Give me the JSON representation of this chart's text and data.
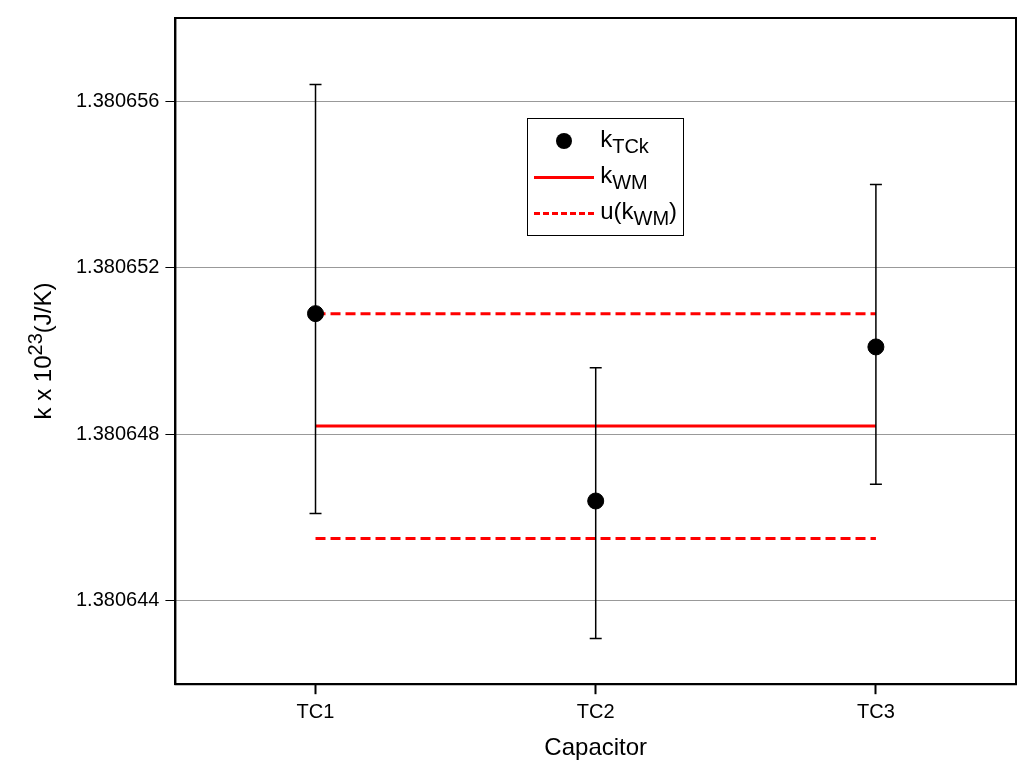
{
  "chart_data": {
    "type": "scatter",
    "xlabel": "Capacitor",
    "ylabel": "k x 10$^{23}$(J/K)",
    "categories": [
      "TC1",
      "TC2",
      "TC3"
    ],
    "series": [
      {
        "name": "k$_{TCk}$",
        "color": "#000000",
        "marker": "circle",
        "values": [
          1.3806509,
          1.3806464,
          1.3806501
        ],
        "errors": [
          [
            1.3806461,
            1.3806564
          ],
          [
            1.3806431,
            1.3806496
          ],
          [
            1.3806468,
            1.380654
          ]
        ]
      },
      {
        "name": "k$_{WM}$",
        "type": "line",
        "color": "#ff0000",
        "marker": "none",
        "line_style": "solid",
        "values": [
          1.3806482,
          1.3806482,
          1.3806482
        ]
      },
      {
        "name": "u(k$_{WM}$)",
        "type": "line",
        "color": "#ff0000",
        "marker": "none",
        "line_style": "dashed",
        "values": [
          1.3806509,
          1.3806509,
          1.3806509
        ]
      },
      {
        "type": "line",
        "color": "#ff0000",
        "marker": "none",
        "line_style": "dashed",
        "values": [
          1.3806455,
          1.3806455,
          1.3806455
        ]
      }
    ],
    "ylim": [
      1.380642,
      1.380658
    ],
    "yticks": [
      1.380644,
      1.380648,
      1.380652,
      1.380656
    ],
    "grid": "y",
    "legend": "top"
  }
}
